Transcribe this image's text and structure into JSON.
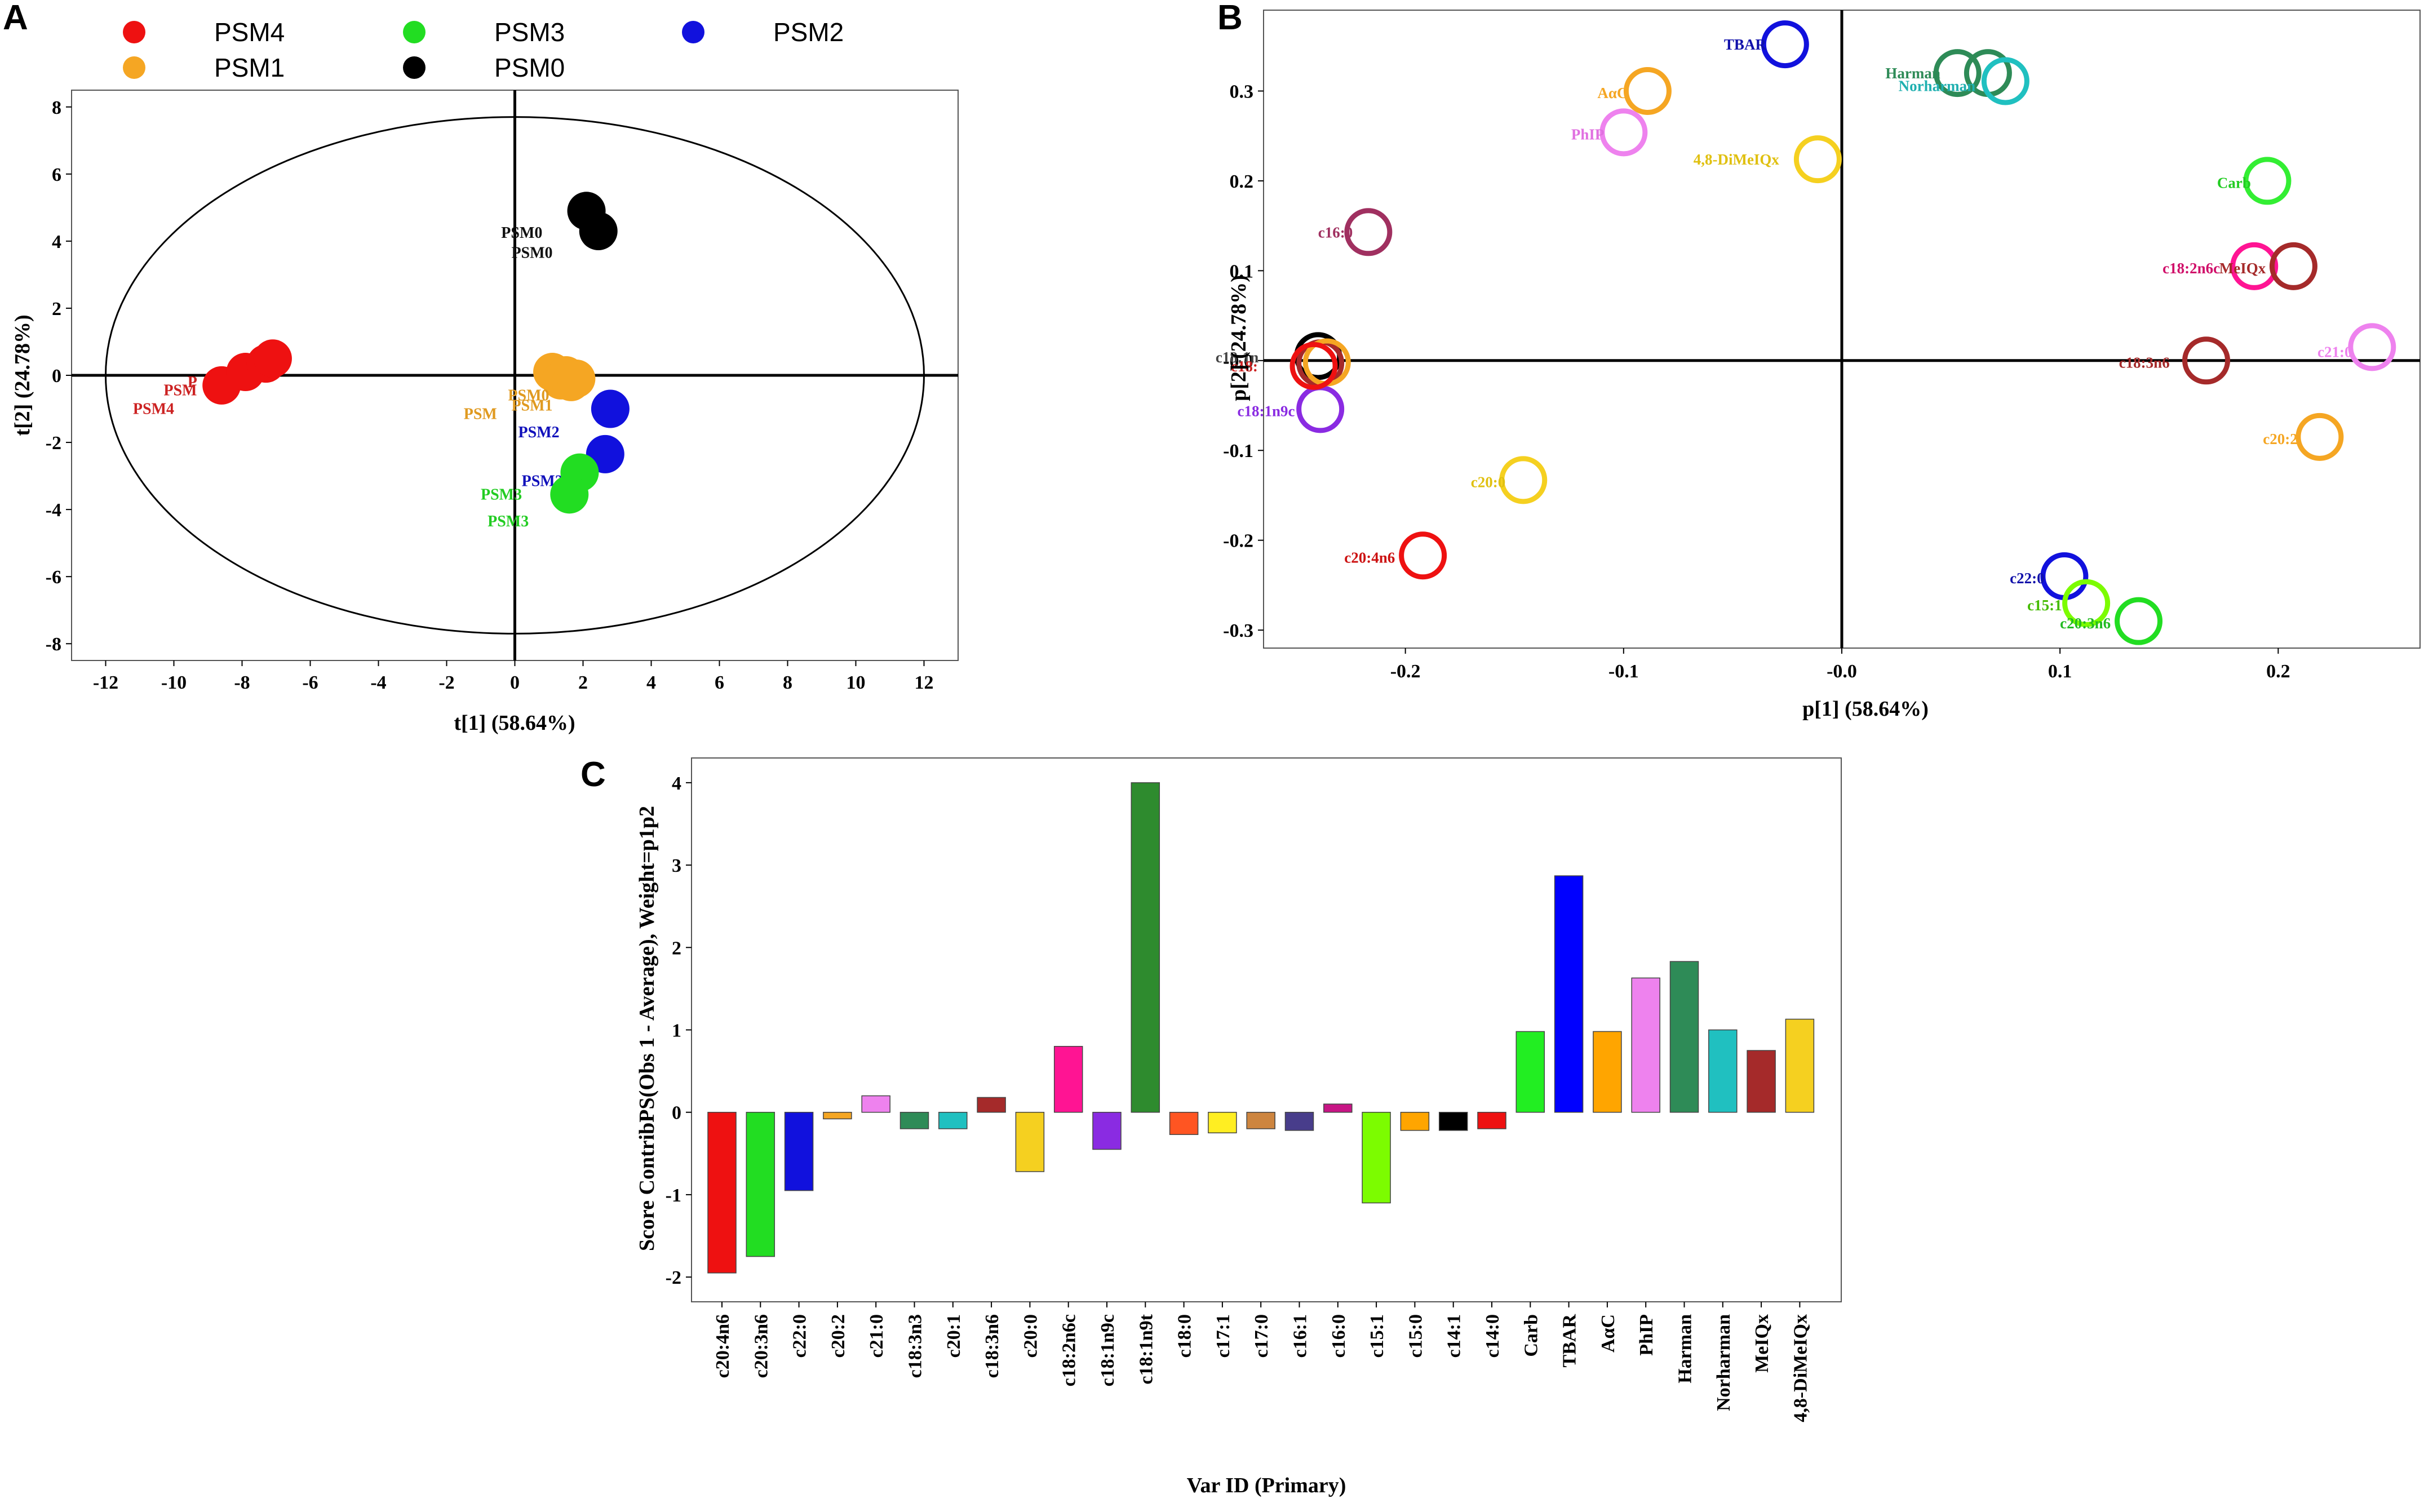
{
  "chart_data": [
    {
      "panel": "A",
      "type": "scatter",
      "title": "",
      "xlabel": "t[1] (58.64%)",
      "ylabel": "t[2] (24.78%)",
      "xlim": [
        -13,
        13
      ],
      "ylim": [
        -8.5,
        8.5
      ],
      "xticks": [
        "-12",
        "-10",
        "-8",
        "-6",
        "-4",
        "-2",
        "0",
        "2",
        "4",
        "6",
        "8",
        "10",
        "12"
      ],
      "yticks": [
        "8",
        "6",
        "4",
        "2",
        "0",
        "-2",
        "-4",
        "-6",
        "-8"
      ],
      "ellipse": {
        "rx": 12,
        "ry": 7.7
      },
      "legend": [
        {
          "name": "PSM4",
          "color": "#ee1111"
        },
        {
          "name": "PSM1",
          "color": "#f5a623"
        },
        {
          "name": "PSM3",
          "color": "#22dd22"
        },
        {
          "name": "PSM0",
          "color": "#000000"
        },
        {
          "name": "PSM2",
          "color": "#1111dd"
        }
      ],
      "series": [
        {
          "name": "PSM4",
          "color": "#ee1111",
          "labelColor": "#cc2222",
          "points": [
            [
              -8.6,
              -0.3
            ],
            [
              -7.9,
              0.1
            ],
            [
              -7.3,
              0.35
            ],
            [
              -7.1,
              0.5
            ]
          ],
          "labels": [
            {
              "text": "PSM4",
              "x": -11.2,
              "y": -1.15
            },
            {
              "text": "PSM",
              "x": -10.3,
              "y": -0.6
            },
            {
              "text": "P",
              "x": -9.6,
              "y": -0.35
            }
          ]
        },
        {
          "name": "PSM1",
          "color": "#f5a623",
          "labelColor": "#e09a20",
          "points": [
            [
              1.1,
              0.1
            ],
            [
              1.35,
              -0.15
            ],
            [
              1.5,
              0.0
            ],
            [
              1.65,
              -0.2
            ],
            [
              1.8,
              -0.1
            ]
          ],
          "labels": [
            {
              "text": "PSM0",
              "x": -0.2,
              "y": -0.75
            },
            {
              "text": "PSM1",
              "x": -0.1,
              "y": -1.05
            },
            {
              "text": "PSM",
              "x": -1.5,
              "y": -1.3
            }
          ]
        },
        {
          "name": "PSM2",
          "color": "#1111dd",
          "labelColor": "#1111bb",
          "points": [
            [
              2.8,
              -1.0
            ],
            [
              2.65,
              -2.35
            ]
          ],
          "labels": [
            {
              "text": "PSM2",
              "x": 0.1,
              "y": -1.85
            },
            {
              "text": "PSM2",
              "x": 0.2,
              "y": -3.3
            }
          ]
        },
        {
          "name": "PSM3",
          "color": "#22dd22",
          "labelColor": "#22cc22",
          "points": [
            [
              1.9,
              -2.9
            ],
            [
              1.6,
              -3.55
            ]
          ],
          "labels": [
            {
              "text": "PSM3",
              "x": -1.0,
              "y": -3.7
            },
            {
              "text": "PSM3",
              "x": -0.8,
              "y": -4.5
            }
          ]
        },
        {
          "name": "PSM0",
          "color": "#000000",
          "labelColor": "#111111",
          "points": [
            [
              2.1,
              4.9
            ],
            [
              2.45,
              4.3
            ]
          ],
          "labels": [
            {
              "text": "PSM0",
              "x": -0.4,
              "y": 4.1
            },
            {
              "text": "PSM0",
              "x": -0.1,
              "y": 3.5
            }
          ]
        }
      ]
    },
    {
      "panel": "B",
      "type": "scatter",
      "title": "",
      "xlabel": "p[1] (58.64%)",
      "ylabel": "p[2] (24.78%)",
      "xlim": [
        -0.265,
        0.265
      ],
      "ylim": [
        -0.32,
        0.39
      ],
      "xticks": [
        "-0.2",
        "-0.1",
        "-0.0",
        "0.1",
        "0.2"
      ],
      "yticks": [
        "0.3",
        "0.2",
        "0.1",
        "-0.0",
        "-0.1",
        "-0.2",
        "-0.3"
      ],
      "points": [
        {
          "label": "TBAR",
          "x": -0.026,
          "y": 0.352,
          "color": "#1111dd",
          "lx": -0.054,
          "ly": 0.346,
          "lcolor": "#1111aa"
        },
        {
          "label": "Harman",
          "x": 0.053,
          "y": 0.32,
          "color": "#2e8b57",
          "lx": 0.02,
          "ly": 0.314,
          "lcolor": "#2e8b57"
        },
        {
          "label": "",
          "x": 0.067,
          "y": 0.32,
          "color": "#2e8b57",
          "lx": 0,
          "ly": 0,
          "lcolor": "#2e8b57"
        },
        {
          "label": "Norharman",
          "x": 0.075,
          "y": 0.311,
          "color": "#20c0c0",
          "lx": 0.026,
          "ly": 0.3,
          "lcolor": "#20b0b0"
        },
        {
          "label": "AαC",
          "x": -0.089,
          "y": 0.3,
          "color": "#f5a623",
          "lx": -0.112,
          "ly": 0.292,
          "lcolor": "#f5a623"
        },
        {
          "label": "PhIP",
          "x": -0.1,
          "y": 0.254,
          "color": "#ee82ee",
          "lx": -0.124,
          "ly": 0.246,
          "lcolor": "#e070e0"
        },
        {
          "label": "4,8-DiMeIQx",
          "x": -0.011,
          "y": 0.224,
          "color": "#f5d020",
          "lx": -0.068,
          "ly": 0.218,
          "lcolor": "#e0c010"
        },
        {
          "label": "Carb",
          "x": 0.195,
          "y": 0.2,
          "color": "#33ee33",
          "lx": 0.172,
          "ly": 0.192,
          "lcolor": "#22cc22"
        },
        {
          "label": "c16:0",
          "x": -0.217,
          "y": 0.143,
          "color": "#a03060",
          "lx": -0.24,
          "ly": 0.137,
          "lcolor": "#a03060"
        },
        {
          "label": "c18:2n6c",
          "x": 0.189,
          "y": 0.105,
          "color": "#ff1493",
          "lx": 0.147,
          "ly": 0.097,
          "lcolor": "#d0106a"
        },
        {
          "label": "MeIQx",
          "x": 0.207,
          "y": 0.105,
          "color": "#a52a2a",
          "lx": 0.173,
          "ly": 0.097,
          "lcolor": "#a52a2a"
        },
        {
          "label": "c18:3n6",
          "x": 0.167,
          "y": 0.0,
          "color": "#a52a2a",
          "lx": 0.127,
          "ly": -0.008,
          "lcolor": "#a52a2a"
        },
        {
          "label": "c21:0",
          "x": 0.243,
          "y": 0.015,
          "color": "#ee82ee",
          "lx": 0.218,
          "ly": 0.004,
          "lcolor": "#ee82ee"
        },
        {
          "label": "c20:2",
          "x": 0.219,
          "y": -0.085,
          "color": "#f5a623",
          "lx": 0.193,
          "ly": -0.093,
          "lcolor": "#f5a623"
        },
        {
          "label": "c18:1n9c",
          "x": -0.239,
          "y": -0.054,
          "color": "#8a2be2",
          "lx": -0.277,
          "ly": -0.062,
          "lcolor": "#8a2be2"
        },
        {
          "label": "",
          "x": -0.24,
          "y": 0.005,
          "color": "#000000",
          "lx": 0,
          "ly": 0,
          "lcolor": "#000"
        },
        {
          "label": "",
          "x": -0.239,
          "y": -0.003,
          "color": "#a52a2a",
          "lx": 0,
          "ly": 0,
          "lcolor": "#a52a2a"
        },
        {
          "label": "",
          "x": -0.236,
          "y": -0.002,
          "color": "#f5a623",
          "lx": 0,
          "ly": 0,
          "lcolor": "#f5a623"
        },
        {
          "label": "",
          "x": -0.242,
          "y": -0.006,
          "color": "#ee1111",
          "lx": 0,
          "ly": 0,
          "lcolor": "#ee1111"
        },
        {
          "label": "c20:0",
          "x": -0.146,
          "y": -0.133,
          "color": "#f5d020",
          "lx": -0.17,
          "ly": -0.141,
          "lcolor": "#e0c010"
        },
        {
          "label": "c20:4n6",
          "x": -0.192,
          "y": -0.217,
          "color": "#ee1111",
          "lx": -0.228,
          "ly": -0.225,
          "lcolor": "#cc1111"
        },
        {
          "label": "c22:0",
          "x": 0.102,
          "y": -0.24,
          "color": "#1111dd",
          "lx": 0.077,
          "ly": -0.248,
          "lcolor": "#1111aa"
        },
        {
          "label": "c15:1",
          "x": 0.112,
          "y": -0.27,
          "color": "#7cfc00",
          "lx": 0.085,
          "ly": -0.278,
          "lcolor": "#44bb00"
        },
        {
          "label": "c20:3n6",
          "x": 0.136,
          "y": -0.29,
          "color": "#22dd22",
          "lx": 0.1,
          "ly": -0.298,
          "lcolor": "#22bb22"
        }
      ],
      "cluster_labels": [
        {
          "text": "c18:1n",
          "x": -0.287,
          "y": -0.002,
          "color": "#444444"
        },
        {
          "text": "c18:",
          "x": -0.28,
          "y": -0.012,
          "color": "#cc2222"
        }
      ]
    },
    {
      "panel": "C",
      "type": "bar",
      "title": "",
      "xlabel": "Var ID (Primary)",
      "ylabel": "Score ContribPS(Obs 1 - Average), Weight=p1p2",
      "ylim": [
        -2.3,
        4.3
      ],
      "yticks": [
        "4",
        "3",
        "2",
        "1",
        "0",
        "-1",
        "-2"
      ],
      "categories": [
        "c20:4n6",
        "c20:3n6",
        "c22:0",
        "c20:2",
        "c21:0",
        "c18:3n3",
        "c20:1",
        "c18:3n6",
        "c20:0",
        "c18:2n6c",
        "c18:1n9c",
        "c18:1n9t",
        "c18:0",
        "c17:1",
        "c17:0",
        "c16:1",
        "c16:0",
        "c15:1",
        "c15:0",
        "c14:1",
        "c14:0",
        "Carb",
        "TBAR",
        "AαC",
        "PhIP",
        "Harman",
        "Norharman",
        "MeIQx",
        "4,8-DiMeIQx"
      ],
      "values": [
        -1.95,
        -1.75,
        -0.95,
        -0.08,
        0.2,
        -0.2,
        -0.2,
        0.18,
        -0.72,
        0.8,
        -0.45,
        4.0,
        -0.27,
        -0.25,
        -0.2,
        -0.22,
        0.1,
        -1.1,
        -0.22,
        -0.22,
        -0.2,
        0.98,
        2.87,
        0.98,
        1.63,
        1.83,
        1.0,
        0.75,
        1.13
      ],
      "colors": [
        "#ee1111",
        "#22dd22",
        "#1111dd",
        "#f5a623",
        "#ee82ee",
        "#2e8b57",
        "#20c0c0",
        "#a52a2a",
        "#f5d020",
        "#ff1493",
        "#8a2be2",
        "#2e8b2e",
        "#ff5522",
        "#ffee22",
        "#cd853f",
        "#483d8b",
        "#c71585",
        "#7cfc00",
        "#ffa500",
        "#000000",
        "#ee1111",
        "#22ee22",
        "#0000ff",
        "#ffa500",
        "#ee82ee",
        "#2e8b57",
        "#20c0c0",
        "#a52a2a",
        "#f5d020"
      ]
    }
  ],
  "panel_letters": [
    "A",
    "B",
    "C"
  ]
}
